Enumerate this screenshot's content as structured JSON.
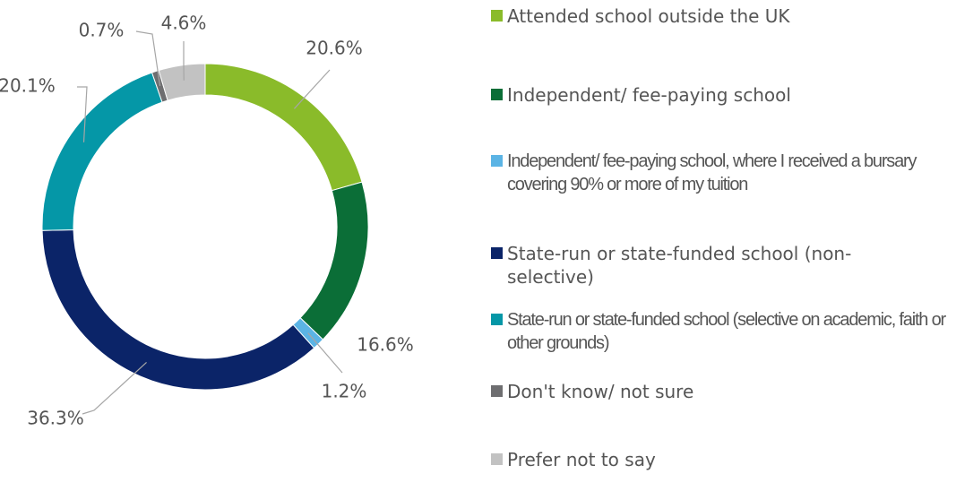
{
  "chart_data": {
    "type": "donut",
    "categories": [
      "Attended school outside the UK",
      "Independent/ fee-paying school",
      "Independent/ fee-paying school, where I received a bursary covering 90% or more of my tuition",
      "State-run or state-funded school (non-selective)",
      "State-run or state-funded school (selective on academic, faith or other grounds)",
      "Don't know/ not sure",
      "Prefer not to say"
    ],
    "values": [
      20.6,
      16.6,
      1.2,
      36.3,
      20.1,
      0.7,
      4.6
    ],
    "value_labels": [
      "20.6%",
      "16.6%",
      "1.2%",
      "36.3%",
      "20.1%",
      "0.7%",
      "4.6%"
    ],
    "colors": [
      "#8abb2a",
      "#0b6e37",
      "#5bb4e5",
      "#0b2468",
      "#0597a7",
      "#6e6e70",
      "#c2c2c2"
    ],
    "legend": "right"
  }
}
